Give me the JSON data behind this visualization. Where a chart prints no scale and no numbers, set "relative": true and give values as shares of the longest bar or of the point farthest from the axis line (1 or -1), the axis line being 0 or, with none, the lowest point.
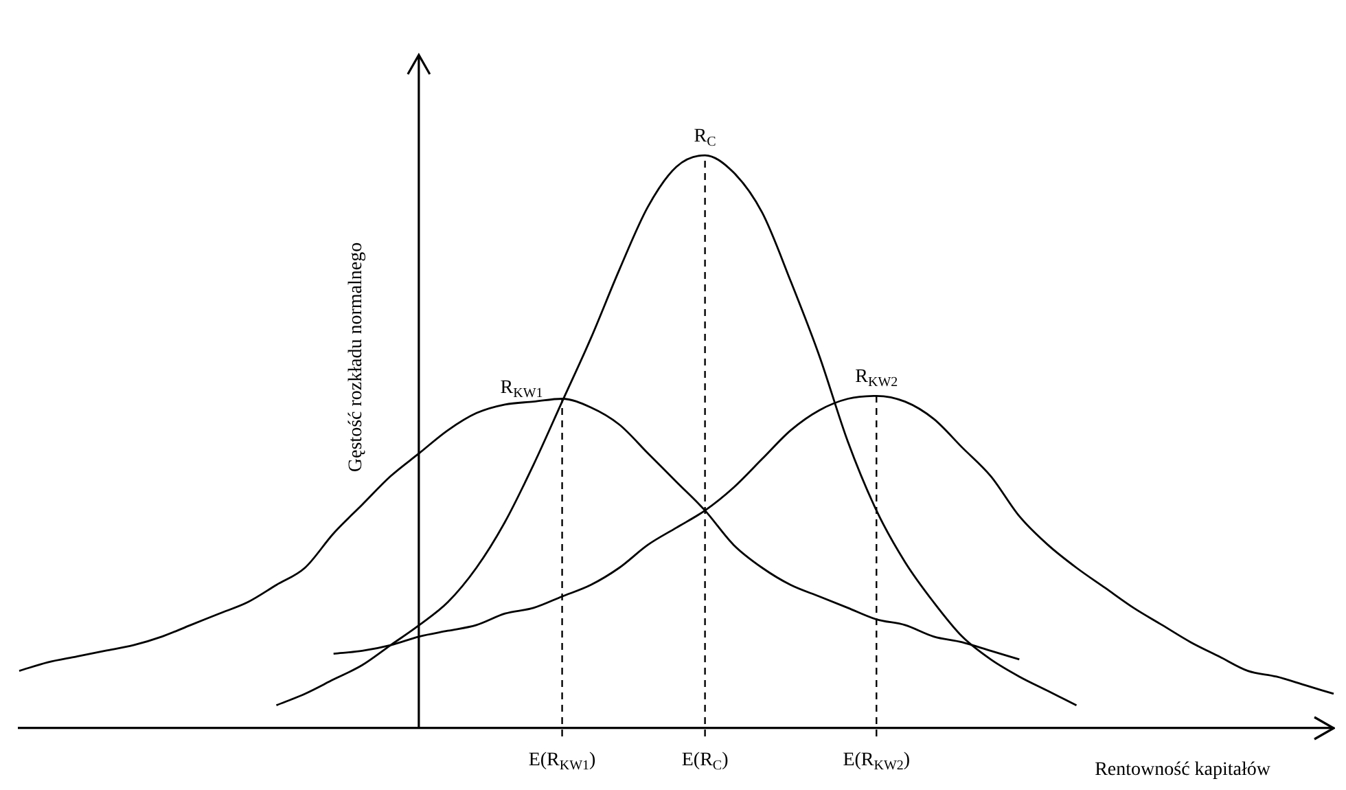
{
  "chart_data": {
    "type": "line",
    "relative": true,
    "xlabel": "Rentowność kapitałów",
    "ylabel": "Gęstość rozkładu normalnego",
    "categories": [
      null,
      null,
      null,
      null,
      null,
      null,
      null,
      null,
      null,
      null,
      null,
      null,
      null,
      null,
      null,
      null,
      null,
      null,
      null,
      "E(R$_{KW1}$)",
      null,
      null,
      null,
      null,
      "E(R$_{C}$)",
      null,
      null,
      null,
      null,
      null,
      "E(R$_{KW2}$)",
      null,
      null,
      null,
      null,
      null,
      null,
      null,
      null,
      null,
      null,
      null,
      null,
      null,
      null,
      null,
      null
    ],
    "series": [
      {
        "name": "R$_{KW1}$",
        "color": "#000000",
        "values": [
          0.1,
          0.115,
          0.125,
          0.135,
          0.145,
          0.16,
          0.18,
          0.2,
          0.22,
          0.25,
          0.28,
          0.34,
          0.39,
          0.44,
          0.48,
          0.52,
          0.55,
          0.565,
          0.57,
          0.575,
          0.56,
          0.53,
          0.48,
          0.43,
          0.38,
          0.32,
          0.28,
          0.25,
          0.23,
          0.21,
          0.19,
          0.18,
          0.16,
          0.15,
          0.135,
          0.12,
          null,
          null,
          null,
          null,
          null,
          null,
          null,
          null,
          null,
          null,
          null
        ]
      },
      {
        "name": "R$_{C}$",
        "color": "#000000",
        "values": [
          null,
          null,
          null,
          null,
          null,
          null,
          null,
          null,
          null,
          0.04,
          0.06,
          0.085,
          0.11,
          0.145,
          0.18,
          0.22,
          0.28,
          0.36,
          0.46,
          0.57,
          0.68,
          0.8,
          0.91,
          0.98,
          1,
          0.97,
          0.9,
          0.78,
          0.65,
          0.5,
          0.38,
          0.29,
          0.22,
          0.16,
          0.12,
          0.09,
          0.065,
          0.04,
          null,
          null,
          null,
          null,
          null,
          null,
          null,
          null,
          null
        ]
      },
      {
        "name": "R$_{KW2}$",
        "color": "#000000",
        "values": [
          null,
          null,
          null,
          null,
          null,
          null,
          null,
          null,
          null,
          null,
          null,
          0.13,
          0.135,
          0.145,
          0.16,
          0.17,
          0.18,
          0.2,
          0.21,
          0.23,
          0.25,
          0.28,
          0.32,
          0.35,
          0.38,
          0.42,
          0.47,
          0.52,
          0.555,
          0.575,
          0.58,
          0.57,
          0.54,
          0.49,
          0.44,
          0.37,
          0.32,
          0.28,
          0.245,
          0.21,
          0.18,
          0.15,
          0.125,
          0.1,
          0.09,
          0.075,
          0.06
        ]
      }
    ],
    "ref_lines": [
      {
        "axis": "x",
        "value": "E(R$_{KW1}$)",
        "line_style": "dashed"
      },
      {
        "axis": "x",
        "value": "E(R$_{C}$)",
        "line_style": "dashed"
      },
      {
        "axis": "x",
        "value": "E(R$_{KW2}$)",
        "line_style": "dashed"
      }
    ],
    "legend": false,
    "grid": false,
    "marker": "none",
    "line_style": "solid"
  }
}
